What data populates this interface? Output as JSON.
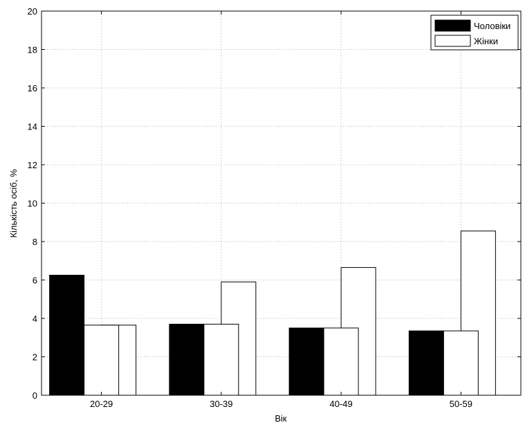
{
  "chart_data": {
    "type": "bar",
    "categories": [
      "20-29",
      "30-39",
      "40-49",
      "50-59"
    ],
    "series": [
      {
        "name": "Чоловіки",
        "values": [
          6.25,
          3.7,
          3.5,
          3.35
        ],
        "color": "#000000"
      },
      {
        "name": "Жінки",
        "values": [
          3.65,
          5.9,
          6.65,
          8.55
        ],
        "color": "#ffffff"
      }
    ],
    "overlay_bars": [
      {
        "category": "20-29",
        "value": 3.65
      },
      {
        "category": "30-39",
        "value": 3.7
      },
      {
        "category": "40-49",
        "value": 3.5
      },
      {
        "category": "50-59",
        "value": 3.35
      }
    ],
    "xlabel": "Вік",
    "ylabel": "Кількість осіб, %",
    "ylim": [
      0,
      20
    ],
    "yticks": [
      "0",
      "2",
      "4",
      "6",
      "8",
      "10",
      "12",
      "14",
      "16",
      "18",
      "20"
    ],
    "grid": true,
    "legend_position": "top-right"
  }
}
